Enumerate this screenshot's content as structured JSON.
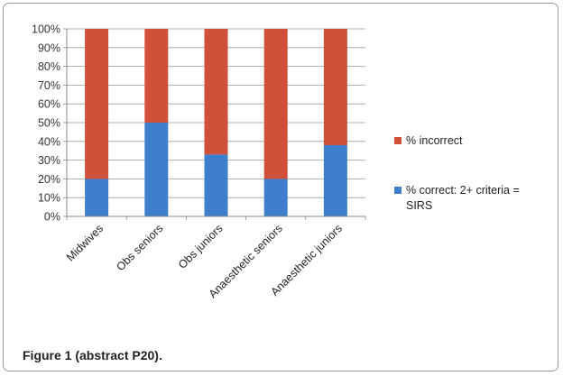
{
  "chart_data": {
    "type": "bar",
    "stacked": true,
    "categories": [
      "Midwives",
      "Obs seniors",
      "Obs juniors",
      "Anaesthetic seniors",
      "Anaesthetic juniors"
    ],
    "series": [
      {
        "name": "% correct: 2+ criteria = SIRS",
        "legend_lines": [
          "% correct: 2+ criteria =",
          "SIRS"
        ],
        "values": [
          20,
          50,
          33,
          20,
          38
        ],
        "color": "#3d7fcc"
      },
      {
        "name": "% incorrect",
        "legend_lines": [
          "% incorrect"
        ],
        "values": [
          80,
          50,
          67,
          80,
          62
        ],
        "color": "#d0503a"
      }
    ],
    "ylim": [
      0,
      100
    ],
    "yticks": [
      "0%",
      "10%",
      "20%",
      "30%",
      "40%",
      "50%",
      "60%",
      "70%",
      "80%",
      "90%",
      "100%"
    ],
    "grid": true,
    "legend_position": "right"
  },
  "caption": "Figure 1 (abstract P20)."
}
